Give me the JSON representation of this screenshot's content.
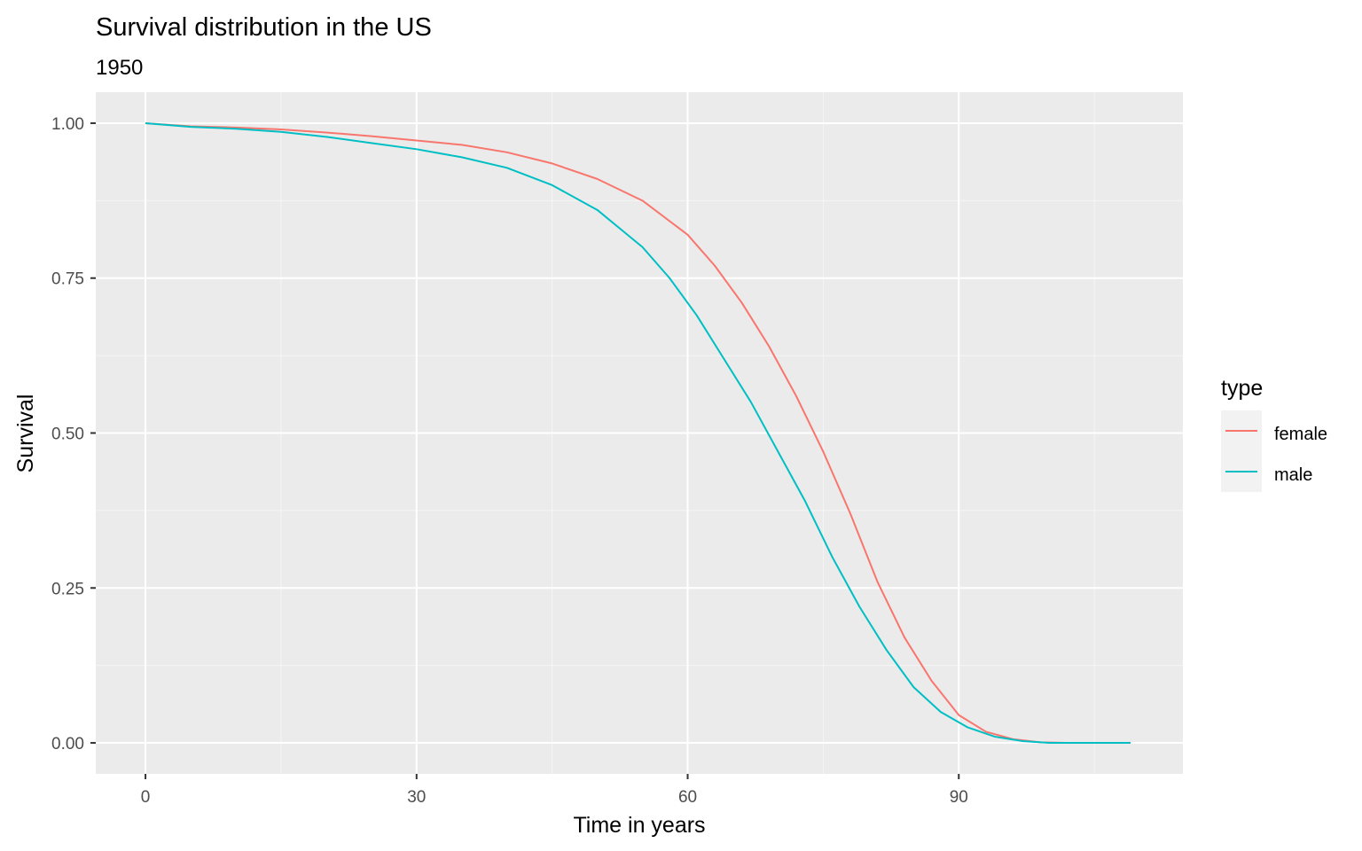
{
  "chart_data": {
    "type": "line",
    "title": "Survival distribution in the US",
    "subtitle": "1950",
    "xlabel": "Time in years",
    "ylabel": "Survival",
    "xlim": [
      -5.5,
      114.8
    ],
    "ylim": [
      -0.05,
      1.05
    ],
    "x_ticks": [
      0,
      30,
      60,
      90
    ],
    "x_tick_labels": [
      "0",
      "30",
      "60",
      "90"
    ],
    "y_ticks": [
      0,
      0.25,
      0.5,
      0.75,
      1
    ],
    "y_tick_labels": [
      "0.00",
      "0.25",
      "0.50",
      "0.75",
      "1.00"
    ],
    "grid": true,
    "legend": {
      "title": "type",
      "position": "right"
    },
    "panel_background": "#ebebeb",
    "series": [
      {
        "name": "female",
        "color": "#F8766D",
        "x": [
          0,
          5,
          10,
          15,
          20,
          25,
          30,
          35,
          40,
          45,
          50,
          55,
          60,
          63,
          66,
          69,
          72,
          75,
          78,
          81,
          84,
          87,
          90,
          93,
          96,
          99,
          102,
          105,
          109
        ],
        "y": [
          1.0,
          0.995,
          0.993,
          0.99,
          0.985,
          0.979,
          0.972,
          0.965,
          0.953,
          0.935,
          0.91,
          0.875,
          0.82,
          0.77,
          0.71,
          0.64,
          0.56,
          0.47,
          0.37,
          0.26,
          0.17,
          0.1,
          0.045,
          0.018,
          0.006,
          0.001,
          0.0,
          0.0,
          0.0
        ]
      },
      {
        "name": "male",
        "color": "#00BFC4",
        "x": [
          0,
          5,
          10,
          15,
          20,
          25,
          30,
          35,
          40,
          45,
          50,
          55,
          58,
          61,
          64,
          67,
          70,
          73,
          76,
          79,
          82,
          85,
          88,
          91,
          94,
          97,
          100,
          103,
          109
        ],
        "y": [
          1.0,
          0.994,
          0.991,
          0.986,
          0.978,
          0.968,
          0.958,
          0.945,
          0.928,
          0.9,
          0.86,
          0.8,
          0.75,
          0.69,
          0.62,
          0.55,
          0.47,
          0.39,
          0.3,
          0.22,
          0.15,
          0.09,
          0.05,
          0.025,
          0.01,
          0.003,
          0.0,
          0.0,
          0.0
        ]
      }
    ]
  }
}
